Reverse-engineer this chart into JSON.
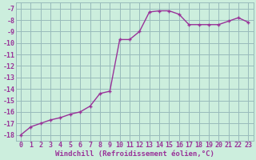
{
  "x": [
    0,
    1,
    2,
    3,
    4,
    5,
    6,
    7,
    8,
    9,
    10,
    11,
    12,
    13,
    14,
    15,
    16,
    17,
    18,
    19,
    20,
    21,
    22,
    23
  ],
  "y": [
    -18.0,
    -17.3,
    -17.0,
    -16.7,
    -16.5,
    -16.2,
    -16.0,
    -15.5,
    -14.4,
    -14.2,
    -9.7,
    -9.7,
    -9.0,
    -7.3,
    -7.2,
    -7.2,
    -7.5,
    -8.4,
    -8.4,
    -8.4,
    -8.4,
    -8.1,
    -7.8,
    -8.2
  ],
  "line_color": "#993399",
  "background_color": "#cceedd",
  "grid_color": "#99bbbb",
  "xlabel": "Windchill (Refroidissement éolien,°C)",
  "ylim": [
    -18.5,
    -6.5
  ],
  "xlim": [
    -0.5,
    23.5
  ],
  "yticks": [
    -18,
    -17,
    -16,
    -15,
    -14,
    -13,
    -12,
    -11,
    -10,
    -9,
    -8,
    -7
  ],
  "xticks": [
    0,
    1,
    2,
    3,
    4,
    5,
    6,
    7,
    8,
    9,
    10,
    11,
    12,
    13,
    14,
    15,
    16,
    17,
    18,
    19,
    20,
    21,
    22,
    23
  ],
  "tick_color": "#993399",
  "label_fontsize": 6.5,
  "tick_fontsize": 6,
  "line_width": 1.0,
  "marker_size": 3.5
}
